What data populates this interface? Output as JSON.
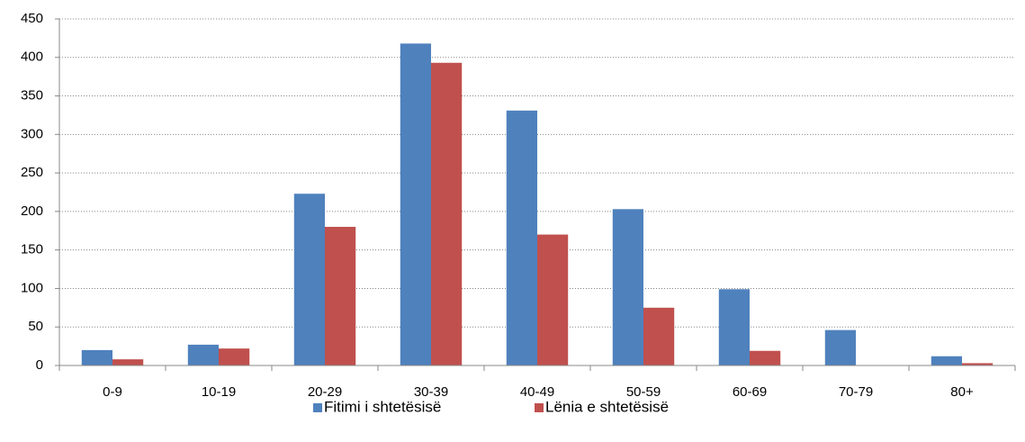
{
  "chart_data": {
    "type": "bar",
    "categories": [
      "0-9",
      "10-19",
      "20-29",
      "30-39",
      "40-49",
      "50-59",
      "60-69",
      "70-79",
      "80+"
    ],
    "series": [
      {
        "name": "Fitimi i shtetësisë",
        "color": "#4f81bd",
        "values": [
          20,
          27,
          223,
          418,
          331,
          203,
          99,
          46,
          12
        ]
      },
      {
        "name": "Lënia e shtetësisë",
        "color": "#c0504d",
        "values": [
          8,
          22,
          180,
          393,
          170,
          75,
          19,
          0,
          3
        ]
      }
    ],
    "ylim": [
      0,
      450
    ],
    "yticks": [
      0,
      50,
      100,
      150,
      200,
      250,
      300,
      350,
      400,
      450
    ],
    "grid": true,
    "legend": "bottom"
  }
}
